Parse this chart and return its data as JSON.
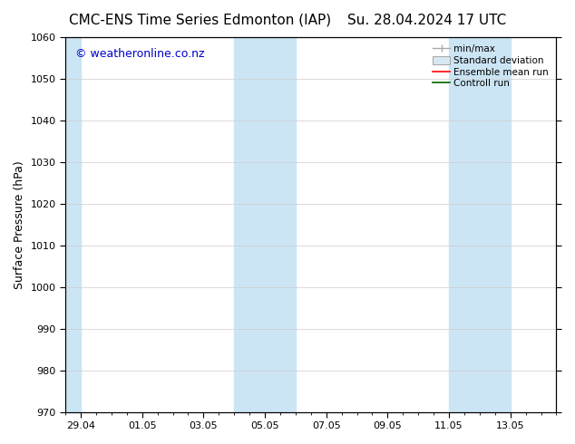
{
  "title_left": "CMC-ENS Time Series Edmonton (IAP)",
  "title_right": "Su. 28.04.2024 17 UTC",
  "ylabel": "Surface Pressure (hPa)",
  "ylim": [
    970,
    1060
  ],
  "yticks": [
    970,
    980,
    990,
    1000,
    1010,
    1020,
    1030,
    1040,
    1050,
    1060
  ],
  "xlabel_ticks": [
    "29.04",
    "01.05",
    "03.05",
    "05.05",
    "07.05",
    "09.05",
    "11.05",
    "13.05"
  ],
  "x_tick_positions": [
    0,
    2,
    4,
    6,
    8,
    10,
    12,
    14
  ],
  "xlim": [
    -0.5,
    15.5
  ],
  "watermark": "© weatheronline.co.nz",
  "watermark_color": "#0000cc",
  "shade_color": "#cce5f5",
  "background_color": "#ffffff",
  "grid_color": "#cccccc",
  "tick_font_size": 8,
  "title_font_size": 11,
  "ylabel_font_size": 9,
  "watermark_font_size": 9,
  "legend_labels": [
    "min/max",
    "Standard deviation",
    "Ensemble mean run",
    "Controll run"
  ],
  "legend_line_colors": [
    "#aaaaaa",
    "#cccccc",
    "#ff0000",
    "#006600"
  ]
}
